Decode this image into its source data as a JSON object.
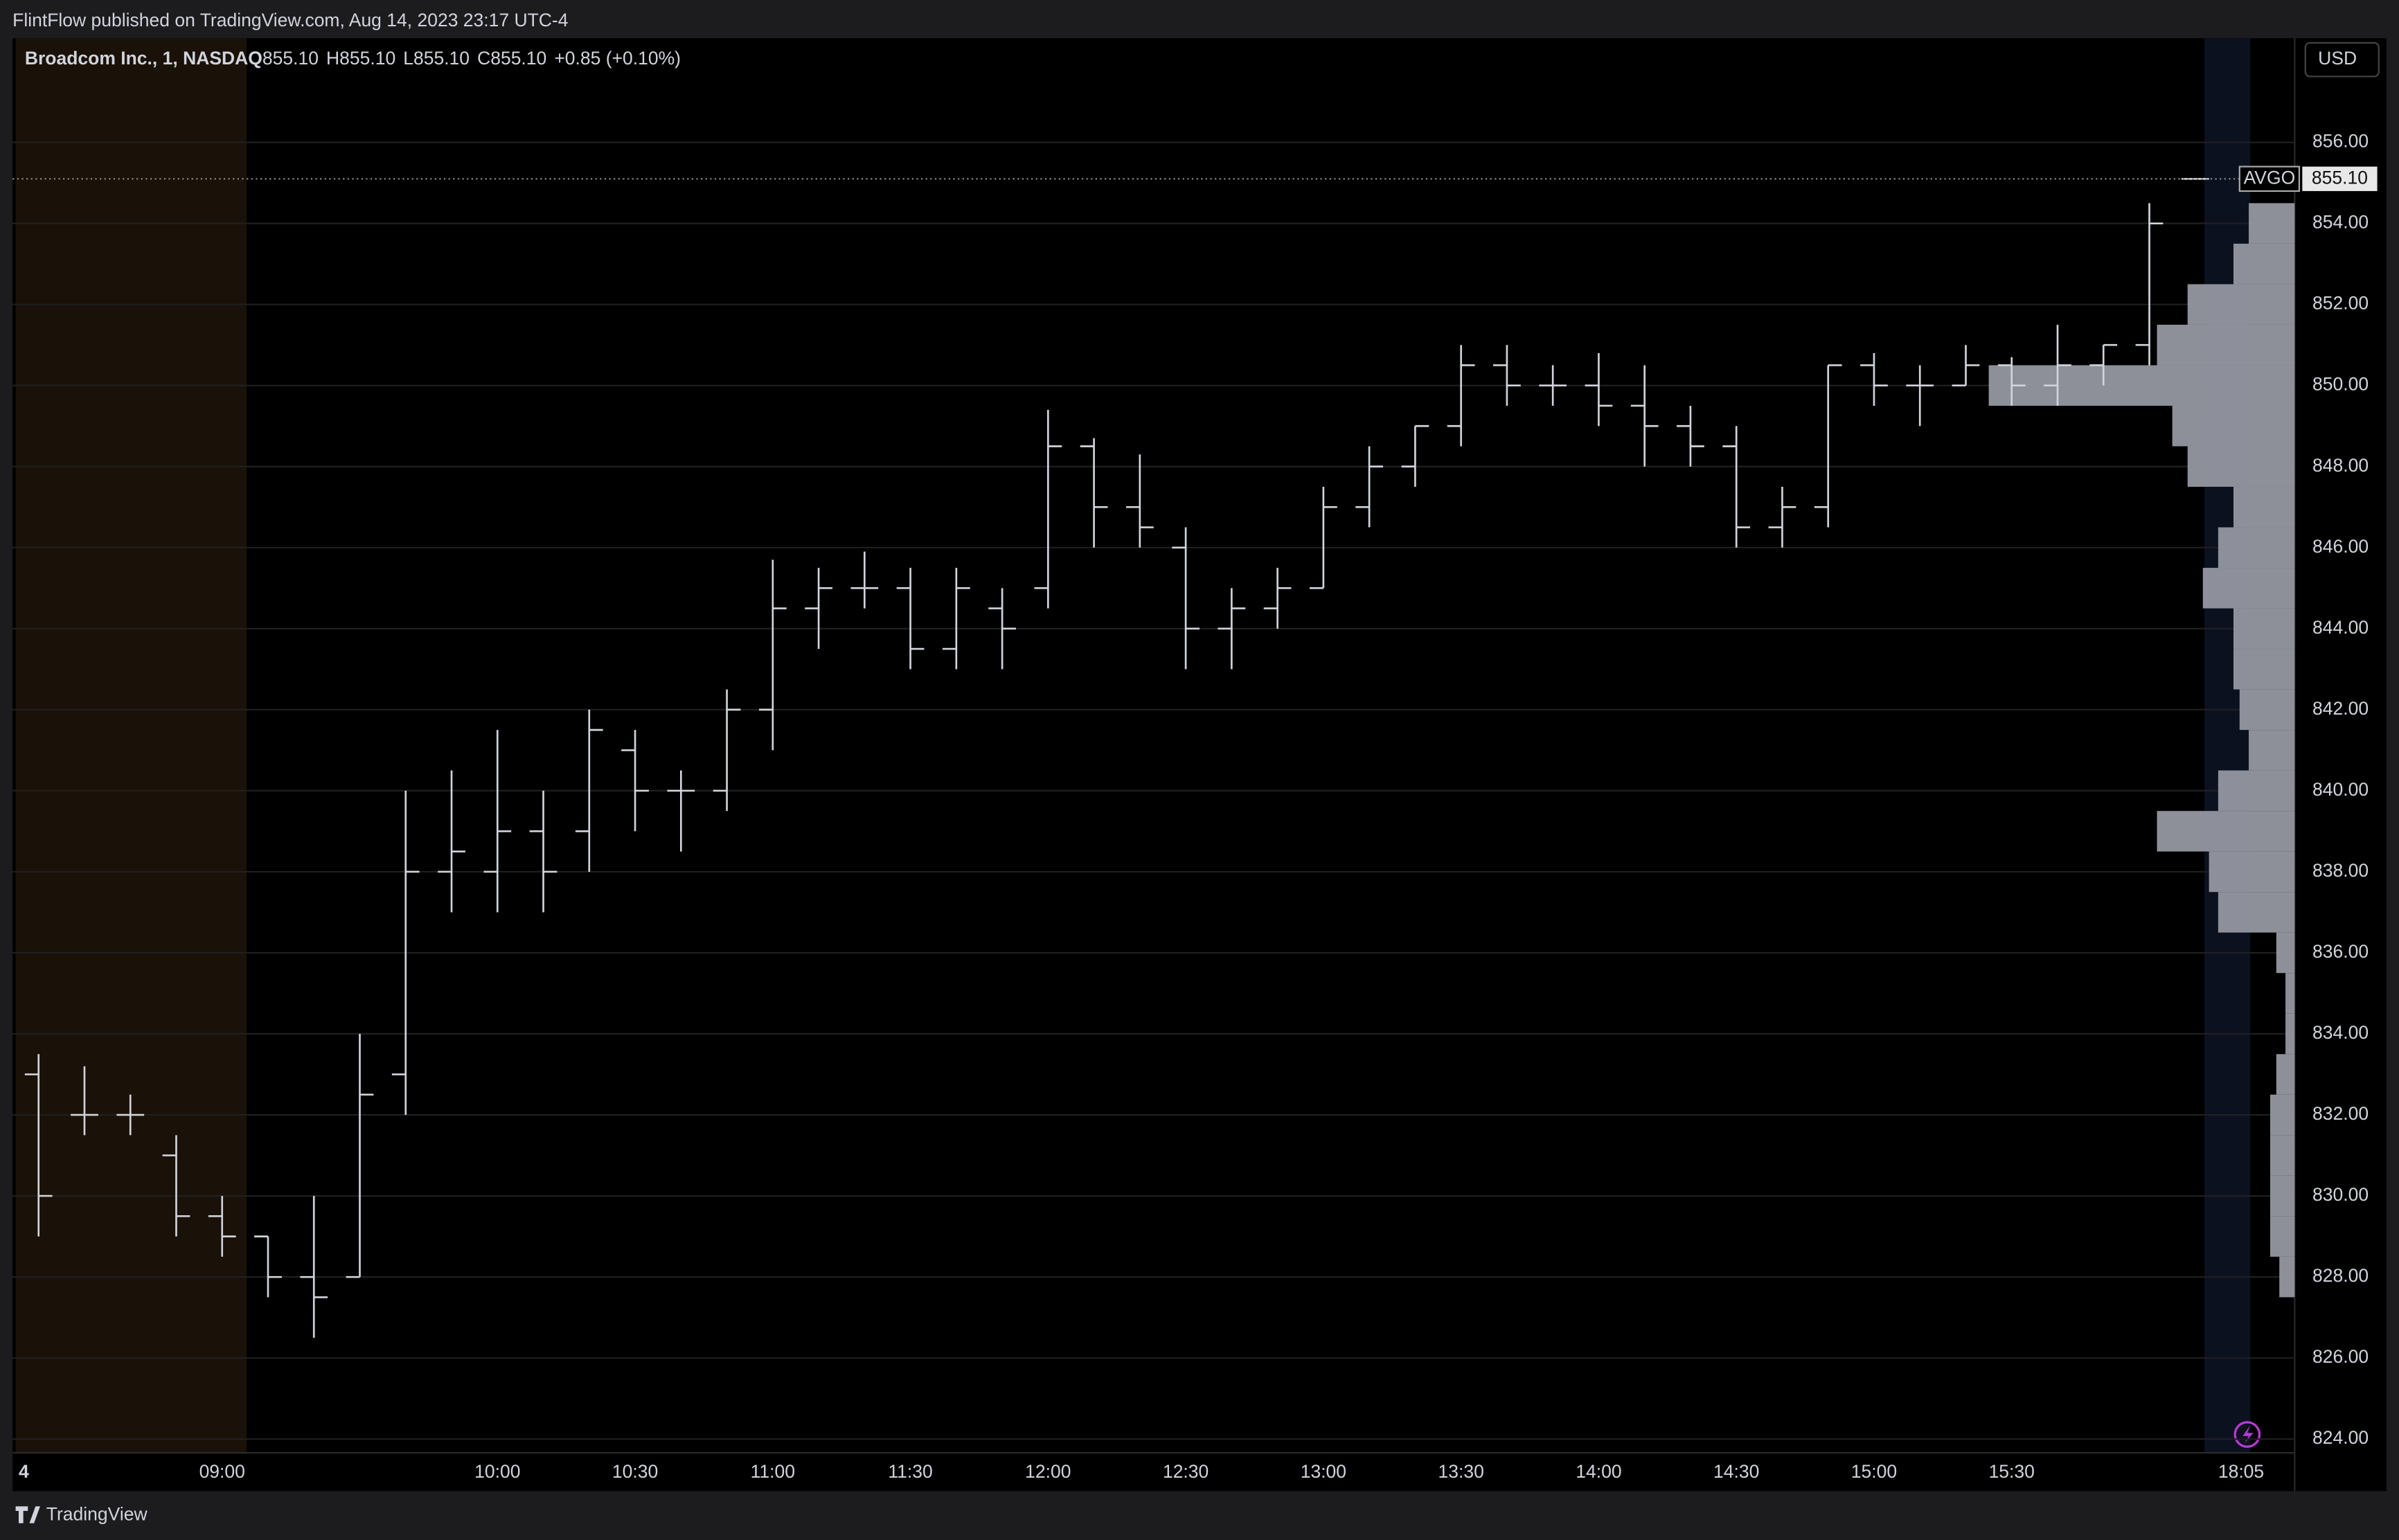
{
  "header": {
    "text": "FlintFlow published on TradingView.com, Aug 14, 2023 23:17 UTC-4"
  },
  "footer": {
    "brand": "TradingView"
  },
  "chart_data": {
    "type": "ohlc",
    "title": "Broadcom Inc., 1, NASDAQ",
    "legend_items": [
      "O855.10",
      "H855.10",
      "L855.10",
      "C855.10",
      "+0.85 (+0.10%)"
    ],
    "currency": "USD",
    "symbol": "AVGO",
    "last_price": {
      "value": 855.1,
      "label": "855.10"
    },
    "date_label": "4",
    "categories": [
      "08:20",
      "08:30",
      "08:40",
      "08:50",
      "09:00",
      "09:10",
      "09:20",
      "09:30",
      "09:40",
      "09:50",
      "10:00",
      "10:10",
      "10:20",
      "10:30",
      "10:40",
      "10:50",
      "11:00",
      "11:10",
      "11:20",
      "11:30",
      "11:40",
      "11:50",
      "12:00",
      "12:10",
      "12:20",
      "12:30",
      "12:40",
      "12:50",
      "13:00",
      "13:10",
      "13:20",
      "13:30",
      "13:40",
      "13:50",
      "14:00",
      "14:10",
      "14:20",
      "14:30",
      "14:40",
      "14:50",
      "15:00",
      "15:10",
      "15:20",
      "15:30",
      "15:40",
      "15:50",
      "16:00",
      "16:10",
      "18:05"
    ],
    "open": [
      833,
      832,
      832,
      831,
      829.5,
      829,
      828,
      828,
      833,
      838,
      838,
      839,
      839,
      841,
      840,
      840,
      842,
      844.5,
      845,
      845,
      843.5,
      844.5,
      845,
      848.5,
      847,
      846,
      844,
      844.5,
      845,
      847,
      848,
      849,
      850.5,
      850,
      850,
      849.5,
      849,
      848.5,
      846.5,
      847,
      850.5,
      850,
      850,
      850.5,
      850,
      850.5,
      851,
      855.1,
      null
    ],
    "high": [
      833.5,
      833.2,
      832.5,
      831.5,
      830,
      829,
      830,
      834,
      840,
      840.5,
      841.5,
      840,
      842,
      841.5,
      840.5,
      842.5,
      845.7,
      845.5,
      845.9,
      845.5,
      845.5,
      845,
      849.4,
      848.7,
      848.3,
      846.5,
      845,
      845.5,
      847.5,
      848.5,
      849,
      851,
      851,
      850.5,
      850.8,
      850.5,
      849.5,
      849,
      847.5,
      850.5,
      850.8,
      850.5,
      851,
      850.7,
      851.5,
      851,
      854.5,
      855.1,
      null
    ],
    "low": [
      829,
      831.5,
      831.5,
      829,
      828.5,
      827.5,
      826.5,
      828,
      832,
      837,
      837,
      837,
      838,
      839,
      838.5,
      839.5,
      841,
      843.5,
      844.5,
      843,
      843,
      843,
      844.5,
      846,
      846,
      843,
      843,
      844,
      845,
      846.5,
      847.5,
      848.5,
      849.5,
      849.5,
      849,
      848,
      848,
      846,
      846,
      846.5,
      849.5,
      849,
      850,
      849.5,
      849.5,
      850,
      850.5,
      855.1,
      null
    ],
    "close": [
      830,
      832,
      832,
      829.5,
      829,
      828,
      827.5,
      832.5,
      838,
      838.5,
      839,
      838,
      841.5,
      840,
      840,
      842,
      844.5,
      845,
      845,
      843.5,
      845,
      844,
      848.5,
      847,
      846.5,
      844,
      844.5,
      845,
      847,
      848,
      849,
      850.5,
      850,
      850,
      849.5,
      849,
      848.5,
      846.5,
      847,
      850.5,
      850,
      850,
      850.5,
      850,
      850.5,
      851,
      854,
      855.1,
      null
    ],
    "color": "#d1d4dc",
    "ylim": [
      823.66,
      858.57
    ],
    "yticks": [
      {
        "value": 824,
        "label": "824.00"
      },
      {
        "value": 826,
        "label": "826.00"
      },
      {
        "value": 828,
        "label": "828.00"
      },
      {
        "value": 830,
        "label": "830.00"
      },
      {
        "value": 832,
        "label": "832.00"
      },
      {
        "value": 834,
        "label": "834.00"
      },
      {
        "value": 836,
        "label": "836.00"
      },
      {
        "value": 838,
        "label": "838.00"
      },
      {
        "value": 840,
        "label": "840.00"
      },
      {
        "value": 842,
        "label": "842.00"
      },
      {
        "value": 844,
        "label": "844.00"
      },
      {
        "value": 846,
        "label": "846.00"
      },
      {
        "value": 848,
        "label": "848.00"
      },
      {
        "value": 850,
        "label": "850.00"
      },
      {
        "value": 852,
        "label": "852.00"
      },
      {
        "value": 854,
        "label": "854.00"
      },
      {
        "value": 856,
        "label": "856.00"
      }
    ],
    "xticks": [
      "09:00",
      "10:00",
      "10:30",
      "11:00",
      "11:30",
      "12:00",
      "12:30",
      "13:00",
      "13:30",
      "14:00",
      "14:30",
      "15:00",
      "15:30",
      "18:05"
    ],
    "grid": true,
    "volume_profile": {
      "color": "#9598a1",
      "prices": [
        828,
        829,
        830,
        831,
        832,
        833,
        834,
        835,
        836,
        837,
        838,
        839,
        840,
        841,
        842,
        843,
        844,
        845,
        846,
        847,
        848,
        849,
        850,
        851,
        852,
        853,
        854
      ],
      "values": [
        5,
        8,
        8,
        8,
        8,
        6,
        3,
        3,
        6,
        25,
        28,
        45,
        25,
        15,
        18,
        20,
        20,
        30,
        25,
        20,
        35,
        40,
        100,
        45,
        35,
        20,
        15
      ]
    }
  }
}
